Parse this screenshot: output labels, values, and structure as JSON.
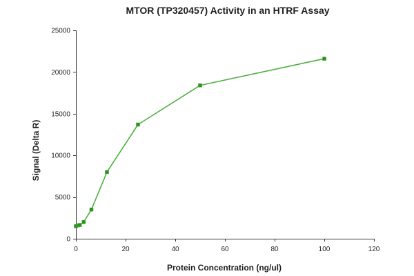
{
  "chart_data": {
    "type": "line",
    "title": "MTOR (TP320457) Activity in an HTRF Assay",
    "xlabel": "Protein Concentration (ng/ul)",
    "ylabel": "Signal (Delta R)",
    "xlim": [
      0,
      120
    ],
    "ylim": [
      0,
      25000
    ],
    "xticks": [
      0,
      20,
      40,
      60,
      80,
      100,
      120
    ],
    "yticks": [
      0,
      5000,
      10000,
      15000,
      20000,
      25000
    ],
    "grid": false,
    "series": [
      {
        "color": "#4caf3e",
        "marker_color": "#2e8b1f",
        "x": [
          0,
          0.78,
          1.56,
          3.125,
          6.25,
          12.5,
          25,
          50,
          100
        ],
        "y": [
          1500,
          1600,
          1650,
          2000,
          3500,
          8000,
          13700,
          18400,
          21600
        ]
      }
    ]
  }
}
